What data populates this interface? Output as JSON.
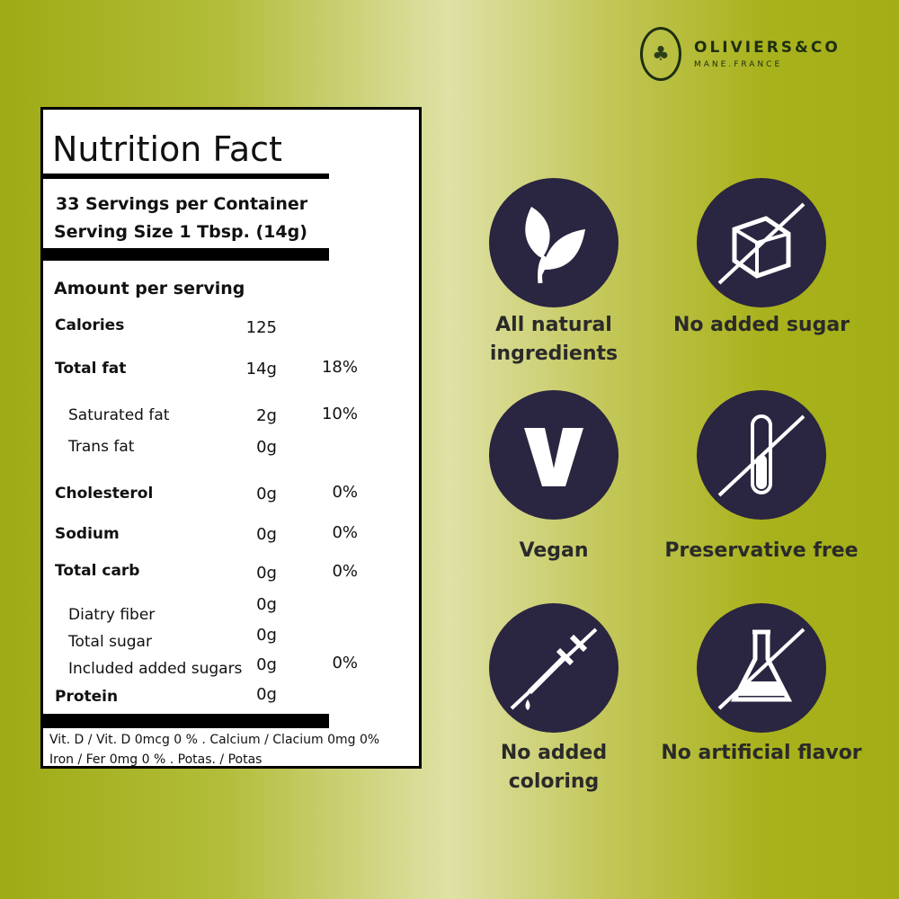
{
  "brand": {
    "name": "OLIVIERS&CO",
    "sub": "MANE.FRANCE"
  },
  "nutrition": {
    "title": "Nutrition Fact",
    "servings": "33 Servings per Container",
    "serving_size": "Serving Size 1 Tbsp. (14g)",
    "amount_header": "Amount per serving",
    "rows": [
      {
        "label": "Calories",
        "amount": "125",
        "dv": ""
      },
      {
        "label": "Total fat",
        "amount": "14g",
        "dv": "18%"
      },
      {
        "label": "Saturated fat",
        "amount": "2g",
        "dv": "10%"
      },
      {
        "label": "Trans fat",
        "amount": "0g",
        "dv": ""
      },
      {
        "label": "Cholesterol",
        "amount": "0g",
        "dv": "0%"
      },
      {
        "label": "Sodium",
        "amount": "0g",
        "dv": "0%"
      },
      {
        "label": "Total carb",
        "amount": "0g",
        "dv": "0%"
      },
      {
        "label": "Diatry fiber",
        "amount": "0g",
        "dv": ""
      },
      {
        "label": "Total sugar",
        "amount": "0g",
        "dv": ""
      },
      {
        "label": "Included added sugars",
        "amount": "0g",
        "dv": "0%"
      },
      {
        "label": "Protein",
        "amount": "0g",
        "dv": ""
      }
    ],
    "footer1": "Vit. D / Vit. D 0mcg 0 % . Calcium / Clacium 0mg 0%",
    "footer2": "Iron / Fer 0mg 0 % . Potas. / Potas"
  },
  "badges": [
    {
      "icon": "leaf-icon",
      "label": "All natural ingredients"
    },
    {
      "icon": "no-sugar-cube-icon",
      "label": "No added sugar"
    },
    {
      "icon": "vegan-v-icon",
      "label": "Vegan"
    },
    {
      "icon": "no-test-tube-icon",
      "label": "Preservative free"
    },
    {
      "icon": "no-dropper-icon",
      "label": "No added coloring"
    },
    {
      "icon": "no-flask-icon",
      "label": "No artificial flavor"
    }
  ],
  "colors": {
    "icon_bg": "#2a2540",
    "brand": "#1e2e12"
  }
}
